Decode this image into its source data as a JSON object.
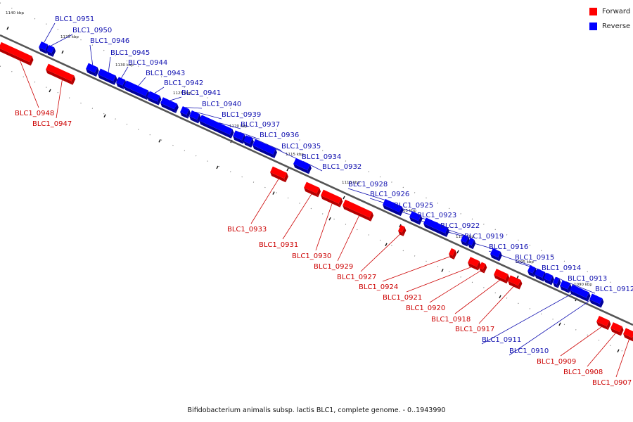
{
  "caption": "Bifidobacterium animalis subsp. lactis BLC1, complete genome. - 0..1943990",
  "legend": [
    {
      "label": "Forward",
      "color": "#ff0000"
    },
    {
      "label": "Reverse",
      "color": "#0000ff"
    }
  ],
  "colors": {
    "forward": "#ff0000",
    "reverse": "#0000ff",
    "forward_dark": "#b30000",
    "reverse_dark": "#00009a",
    "forward_label": "#cc0000",
    "reverse_label": "#1010b0",
    "axis": "#555555"
  },
  "ticks": [
    {
      "label": "1140 kbp"
    },
    {
      "label": "1135 kbp"
    },
    {
      "label": "1130 kbp"
    },
    {
      "label": "1125 kbp"
    },
    {
      "label": "1120 kbp"
    },
    {
      "label": "1115 kbp"
    },
    {
      "label": "1110 kbp"
    },
    {
      "label": "1105 kbp"
    },
    {
      "label": "1100 kbp"
    },
    {
      "label": "1095 kbp"
    },
    {
      "label": "1090 kbp"
    }
  ],
  "genes": [
    {
      "name": "BLC1_0951",
      "strand": "reverse"
    },
    {
      "name": "BLC1_0950",
      "strand": "reverse"
    },
    {
      "name": "BLC1_0946",
      "strand": "reverse"
    },
    {
      "name": "BLC1_0945",
      "strand": "reverse"
    },
    {
      "name": "BLC1_0944",
      "strand": "reverse"
    },
    {
      "name": "BLC1_0943",
      "strand": "reverse"
    },
    {
      "name": "BLC1_0942",
      "strand": "reverse"
    },
    {
      "name": "BLC1_0941",
      "strand": "reverse"
    },
    {
      "name": "BLC1_0940",
      "strand": "reverse"
    },
    {
      "name": "BLC1_0939",
      "strand": "reverse"
    },
    {
      "name": "BLC1_0937",
      "strand": "reverse"
    },
    {
      "name": "BLC1_0936",
      "strand": "reverse"
    },
    {
      "name": "BLC1_0935",
      "strand": "reverse"
    },
    {
      "name": "BLC1_0934",
      "strand": "reverse"
    },
    {
      "name": "BLC1_0932",
      "strand": "reverse"
    },
    {
      "name": "BLC1_0928",
      "strand": "reverse"
    },
    {
      "name": "BLC1_0926",
      "strand": "reverse"
    },
    {
      "name": "BLC1_0925",
      "strand": "reverse"
    },
    {
      "name": "BLC1_0923",
      "strand": "reverse"
    },
    {
      "name": "BLC1_0922",
      "strand": "reverse"
    },
    {
      "name": "BLC1_0919",
      "strand": "reverse"
    },
    {
      "name": "BLC1_0916",
      "strand": "reverse"
    },
    {
      "name": "BLC1_0915",
      "strand": "reverse"
    },
    {
      "name": "BLC1_0914",
      "strand": "reverse"
    },
    {
      "name": "BLC1_0913",
      "strand": "reverse"
    },
    {
      "name": "BLC1_0912",
      "strand": "reverse"
    },
    {
      "name": "BLC1_0911",
      "strand": "reverse"
    },
    {
      "name": "BLC1_0910",
      "strand": "reverse"
    },
    {
      "name": "BLC1_0948",
      "strand": "forward"
    },
    {
      "name": "BLC1_0947",
      "strand": "forward"
    },
    {
      "name": "BLC1_0933",
      "strand": "forward"
    },
    {
      "name": "BLC1_0931",
      "strand": "forward"
    },
    {
      "name": "BLC1_0930",
      "strand": "forward"
    },
    {
      "name": "BLC1_0929",
      "strand": "forward"
    },
    {
      "name": "BLC1_0927",
      "strand": "forward"
    },
    {
      "name": "BLC1_0924",
      "strand": "forward"
    },
    {
      "name": "BLC1_0921",
      "strand": "forward"
    },
    {
      "name": "BLC1_0920",
      "strand": "forward"
    },
    {
      "name": "BLC1_0918",
      "strand": "forward"
    },
    {
      "name": "BLC1_0917",
      "strand": "forward"
    },
    {
      "name": "BLC1_0909",
      "strand": "forward"
    },
    {
      "name": "BLC1_0908",
      "strand": "forward"
    },
    {
      "name": "BLC1_0907",
      "strand": "forward"
    }
  ]
}
